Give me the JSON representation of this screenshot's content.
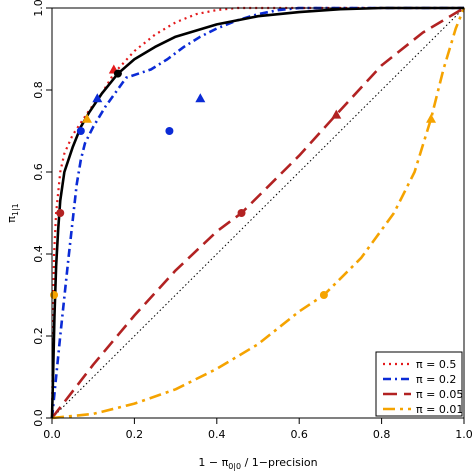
{
  "chart_data": {
    "type": "line",
    "xlabel": "1 − π",
    "xlabel_sub": "0|0",
    "xlabel_rest": " / 1−precision",
    "ylabel": "π",
    "ylabel_sub": "1|1",
    "xlim": [
      0,
      1
    ],
    "ylim": [
      0,
      1
    ],
    "x_ticks": [
      0,
      0.2,
      0.4,
      0.6,
      0.8,
      1
    ],
    "x_tick_labels": [
      "0.0",
      "0.2",
      "0.4",
      "0.6",
      "0.8",
      "1.0"
    ],
    "y_ticks": [
      0,
      0.2,
      0.4,
      0.6,
      0.8,
      1
    ],
    "y_tick_labels": [
      "0.0",
      "0.2",
      "0.4",
      "0.6",
      "0.8",
      "1.0"
    ],
    "grid": false,
    "legend_position": "bottom-right",
    "diagonal": {
      "color": "#000000",
      "style": "dotted",
      "points": [
        [
          0,
          0
        ],
        [
          1,
          1
        ]
      ]
    },
    "series": [
      {
        "name": "π = 0.5",
        "color": "#e31a1c",
        "style": "dotted",
        "points": [
          [
            0,
            0
          ],
          [
            0.005,
            0.4
          ],
          [
            0.01,
            0.5
          ],
          [
            0.02,
            0.6
          ],
          [
            0.03,
            0.645
          ],
          [
            0.05,
            0.69
          ],
          [
            0.07,
            0.72
          ],
          [
            0.09,
            0.75
          ],
          [
            0.12,
            0.79
          ],
          [
            0.15,
            0.84
          ],
          [
            0.2,
            0.895
          ],
          [
            0.25,
            0.935
          ],
          [
            0.3,
            0.965
          ],
          [
            0.35,
            0.985
          ],
          [
            0.4,
            0.995
          ],
          [
            0.45,
            1.0
          ],
          [
            1,
            1
          ]
        ],
        "markers": [
          {
            "shape": "triangle",
            "x": 0.15,
            "y": 0.85
          }
        ]
      },
      {
        "name": "π = 0.2",
        "color": "#0b2bd6",
        "style": "dotdash",
        "points": [
          [
            0,
            0
          ],
          [
            0.01,
            0.1
          ],
          [
            0.02,
            0.2
          ],
          [
            0.04,
            0.39
          ],
          [
            0.06,
            0.57
          ],
          [
            0.07,
            0.63
          ],
          [
            0.08,
            0.67
          ],
          [
            0.1,
            0.71
          ],
          [
            0.13,
            0.76
          ],
          [
            0.18,
            0.83
          ],
          [
            0.24,
            0.85
          ],
          [
            0.28,
            0.875
          ],
          [
            0.32,
            0.905
          ],
          [
            0.36,
            0.93
          ],
          [
            0.4,
            0.95
          ],
          [
            0.45,
            0.97
          ],
          [
            0.5,
            0.985
          ],
          [
            0.55,
            0.995
          ],
          [
            0.6,
            1.0
          ],
          [
            1,
            1
          ]
        ],
        "markers": [
          {
            "shape": "circle",
            "x": 0.07,
            "y": 0.7
          },
          {
            "shape": "triangle",
            "x": 0.11,
            "y": 0.78
          },
          {
            "shape": "circle",
            "x": 0.285,
            "y": 0.7
          },
          {
            "shape": "triangle",
            "x": 0.36,
            "y": 0.78
          }
        ]
      },
      {
        "name": "π = 0.05",
        "color": "#b22222",
        "style": "longdash",
        "points": [
          [
            0,
            0
          ],
          [
            0.1,
            0.13
          ],
          [
            0.2,
            0.25
          ],
          [
            0.3,
            0.36
          ],
          [
            0.4,
            0.455
          ],
          [
            0.46,
            0.5
          ],
          [
            0.55,
            0.59
          ],
          [
            0.6,
            0.64
          ],
          [
            0.69,
            0.74
          ],
          [
            0.8,
            0.86
          ],
          [
            0.9,
            0.94
          ],
          [
            1,
            1
          ]
        ],
        "markers": [
          {
            "shape": "circle",
            "x": 0.02,
            "y": 0.5
          },
          {
            "shape": "circle",
            "x": 0.46,
            "y": 0.5
          },
          {
            "shape": "triangle",
            "x": 0.69,
            "y": 0.74
          }
        ]
      },
      {
        "name": "π = 0.01",
        "color": "#f5a300",
        "style": "dashdot",
        "points": [
          [
            0,
            0
          ],
          [
            0.1,
            0.01
          ],
          [
            0.2,
            0.035
          ],
          [
            0.3,
            0.07
          ],
          [
            0.4,
            0.12
          ],
          [
            0.5,
            0.18
          ],
          [
            0.6,
            0.26
          ],
          [
            0.66,
            0.3
          ],
          [
            0.75,
            0.39
          ],
          [
            0.83,
            0.5
          ],
          [
            0.88,
            0.6
          ],
          [
            0.92,
            0.73
          ],
          [
            0.95,
            0.85
          ],
          [
            0.98,
            0.95
          ],
          [
            1,
            1
          ]
        ],
        "markers": [
          {
            "shape": "circle",
            "x": 0.005,
            "y": 0.3
          },
          {
            "shape": "triangle",
            "x": 0.085,
            "y": 0.73
          },
          {
            "shape": "circle",
            "x": 0.66,
            "y": 0.3
          },
          {
            "shape": "triangle",
            "x": 0.92,
            "y": 0.73
          }
        ]
      },
      {
        "name": "",
        "color": "#000000",
        "style": "solid",
        "points": [
          [
            0,
            0
          ],
          [
            0.003,
            0.12
          ],
          [
            0.006,
            0.25
          ],
          [
            0.01,
            0.37
          ],
          [
            0.015,
            0.46
          ],
          [
            0.02,
            0.53
          ],
          [
            0.03,
            0.6
          ],
          [
            0.05,
            0.66
          ],
          [
            0.07,
            0.71
          ],
          [
            0.09,
            0.745
          ],
          [
            0.12,
            0.79
          ],
          [
            0.16,
            0.84
          ],
          [
            0.2,
            0.875
          ],
          [
            0.25,
            0.905
          ],
          [
            0.3,
            0.93
          ],
          [
            0.4,
            0.96
          ],
          [
            0.5,
            0.98
          ],
          [
            0.6,
            0.99
          ],
          [
            0.7,
            0.997
          ],
          [
            0.8,
            1.0
          ],
          [
            1,
            1
          ]
        ],
        "markers": [
          {
            "shape": "circle",
            "x": 0.16,
            "y": 0.84
          }
        ]
      }
    ],
    "legend": [
      {
        "label": "π = 0.5",
        "color": "#e31a1c",
        "style": "dotted"
      },
      {
        "label": "π = 0.2",
        "color": "#0b2bd6",
        "style": "dotdash"
      },
      {
        "label": "π = 0.05",
        "color": "#b22222",
        "style": "longdash"
      },
      {
        "label": "π = 0.01",
        "color": "#f5a300",
        "style": "dashdot"
      }
    ]
  }
}
